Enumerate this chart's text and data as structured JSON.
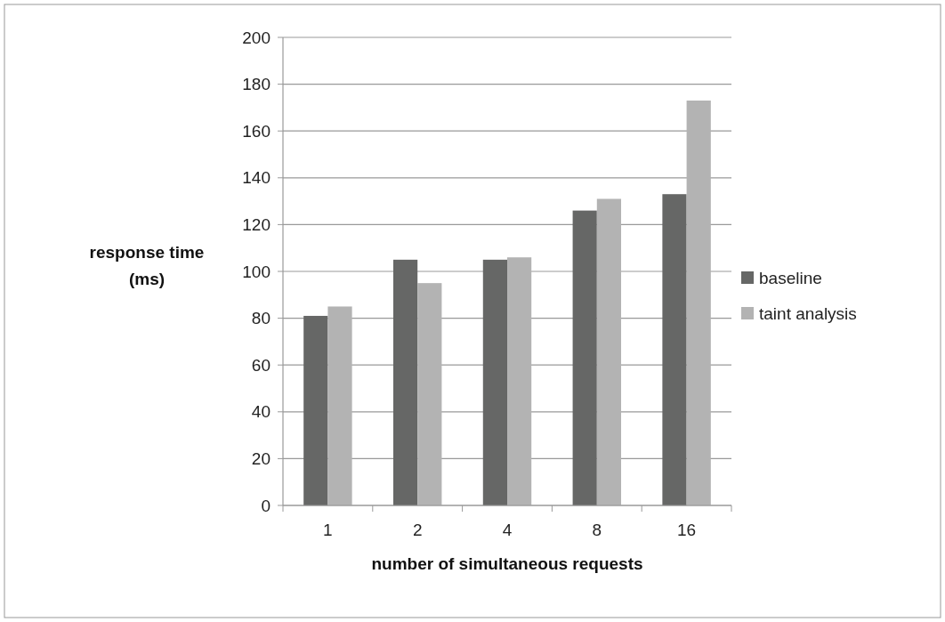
{
  "chart_data": {
    "type": "bar",
    "xlabel": "number of simultaneous  requests",
    "ylabel": "response time (ms)",
    "categories": [
      "1",
      "2",
      "4",
      "8",
      "16"
    ],
    "series": [
      {
        "name": "baseline",
        "color": "#666766",
        "values": [
          81,
          105,
          105,
          126,
          133
        ]
      },
      {
        "name": "taint analysis",
        "color": "#b3b3b3",
        "values": [
          85,
          95,
          106,
          131,
          173
        ]
      }
    ],
    "ylim": [
      0,
      200
    ],
    "yticks": [
      0,
      20,
      40,
      60,
      80,
      100,
      120,
      140,
      160,
      180,
      200
    ],
    "grid": "y",
    "legend": "right"
  }
}
